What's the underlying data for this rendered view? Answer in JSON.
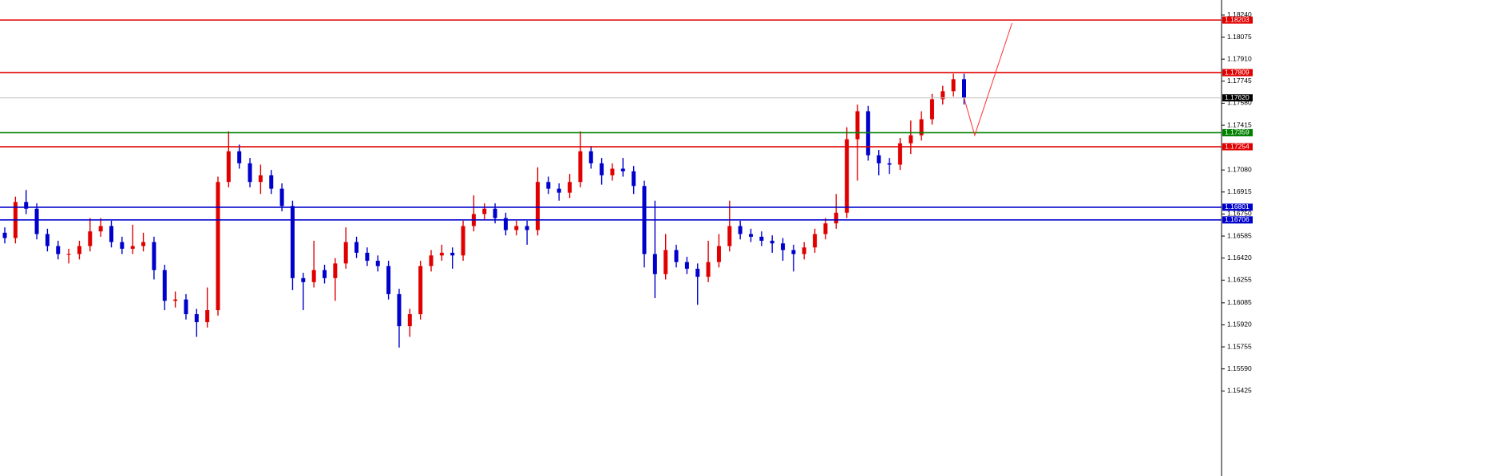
{
  "chart_data": {
    "type": "candlestick",
    "up_color": "#e00000",
    "down_color": "#0000cc",
    "open": [
      1.1661,
      1.1657,
      1.1684,
      1.1679,
      1.166,
      1.1651,
      1.1645,
      1.1645,
      1.1651,
      1.1662,
      1.1666,
      1.1654,
      1.1649,
      1.1651,
      1.1654,
      1.1633,
      1.161,
      1.1611,
      1.16,
      1.1594,
      1.1603,
      1.1699,
      1.1722,
      1.1713,
      1.1699,
      1.1704,
      1.1694,
      1.1681,
      1.1627,
      1.1624,
      1.1633,
      1.1627,
      1.1638,
      1.1654,
      1.1646,
      1.164,
      1.1636,
      1.1615,
      1.1591,
      1.16,
      1.1636,
      1.1644,
      1.1646,
      1.1644,
      1.1666,
      1.1675,
      1.1679,
      1.1672,
      1.1663,
      1.1666,
      1.1663,
      1.1699,
      1.1694,
      1.1691,
      1.1699,
      1.1722,
      1.1713,
      1.1704,
      1.1709,
      1.1707,
      1.1696,
      1.1645,
      1.163,
      1.1648,
      1.1639,
      1.1634,
      1.1628,
      1.1639,
      1.1651,
      1.1666,
      1.166,
      1.1658,
      1.1655,
      1.1653,
      1.1648,
      1.1645,
      1.165,
      1.166,
      1.1668,
      1.1676,
      1.1731,
      1.1752,
      1.1719,
      1.1713,
      1.1712,
      1.1728,
      1.1734,
      1.1746,
      1.1761,
      1.1767,
      1.1776
    ],
    "high": [
      1.1665,
      1.1688,
      1.1693,
      1.1683,
      1.1664,
      1.1655,
      1.1649,
      1.1655,
      1.1672,
      1.1672,
      1.167,
      1.1658,
      1.1667,
      1.1661,
      1.1658,
      1.1637,
      1.1617,
      1.1615,
      1.1604,
      1.162,
      1.1703,
      1.1737,
      1.1727,
      1.1717,
      1.1712,
      1.1708,
      1.1698,
      1.1685,
      1.1631,
      1.1655,
      1.1637,
      1.1642,
      1.1665,
      1.1658,
      1.165,
      1.1644,
      1.164,
      1.1619,
      1.1604,
      1.164,
      1.1648,
      1.1652,
      1.165,
      1.167,
      1.1689,
      1.1683,
      1.1683,
      1.1676,
      1.167,
      1.167,
      1.171,
      1.1703,
      1.1698,
      1.1705,
      1.1737,
      1.1726,
      1.1717,
      1.1713,
      1.1717,
      1.1711,
      1.17,
      1.1685,
      1.166,
      1.1652,
      1.1643,
      1.1638,
      1.1655,
      1.166,
      1.1685,
      1.167,
      1.1664,
      1.1662,
      1.1659,
      1.1657,
      1.1652,
      1.1654,
      1.1664,
      1.1672,
      1.169,
      1.174,
      1.1757,
      1.1756,
      1.1723,
      1.1717,
      1.1732,
      1.1745,
      1.1752,
      1.1765,
      1.1771,
      1.178,
      1.178
    ],
    "low": [
      1.1653,
      1.1653,
      1.1675,
      1.1656,
      1.1647,
      1.1641,
      1.1638,
      1.1641,
      1.1647,
      1.1658,
      1.165,
      1.1645,
      1.1645,
      1.1647,
      1.1626,
      1.1603,
      1.1605,
      1.1596,
      1.1583,
      1.159,
      1.1599,
      1.1695,
      1.1709,
      1.1695,
      1.169,
      1.169,
      1.1677,
      1.1618,
      1.1603,
      1.162,
      1.1623,
      1.161,
      1.1634,
      1.1642,
      1.1636,
      1.1632,
      1.1611,
      1.1575,
      1.1583,
      1.1596,
      1.1632,
      1.164,
      1.1634,
      1.164,
      1.1662,
      1.1671,
      1.1668,
      1.1659,
      1.1659,
      1.1652,
      1.1659,
      1.169,
      1.1685,
      1.1687,
      1.1695,
      1.1709,
      1.1697,
      1.17,
      1.1703,
      1.169,
      1.1635,
      1.1612,
      1.1626,
      1.1635,
      1.163,
      1.1607,
      1.1624,
      1.1635,
      1.1647,
      1.1656,
      1.1654,
      1.1651,
      1.1646,
      1.164,
      1.1632,
      1.1641,
      1.1646,
      1.1656,
      1.1664,
      1.1672,
      1.17,
      1.1715,
      1.1704,
      1.1705,
      1.1708,
      1.172,
      1.173,
      1.1742,
      1.1757,
      1.1763,
      1.1757
    ],
    "close": [
      1.1657,
      1.1684,
      1.1679,
      1.166,
      1.1651,
      1.1645,
      1.1645,
      1.1651,
      1.1662,
      1.1666,
      1.1654,
      1.1649,
      1.1651,
      1.1654,
      1.1633,
      1.161,
      1.1611,
      1.16,
      1.1594,
      1.1603,
      1.1699,
      1.1722,
      1.1713,
      1.1699,
      1.1704,
      1.1694,
      1.1681,
      1.1627,
      1.1624,
      1.1633,
      1.1627,
      1.1638,
      1.1654,
      1.1646,
      1.164,
      1.1636,
      1.1615,
      1.1591,
      1.16,
      1.1636,
      1.1644,
      1.1646,
      1.1644,
      1.1666,
      1.1675,
      1.1679,
      1.1672,
      1.1663,
      1.1666,
      1.1663,
      1.1699,
      1.1694,
      1.1691,
      1.1699,
      1.1722,
      1.1713,
      1.1704,
      1.1709,
      1.1707,
      1.1696,
      1.1645,
      1.163,
      1.1648,
      1.1639,
      1.1634,
      1.1628,
      1.1639,
      1.1651,
      1.1666,
      1.166,
      1.1658,
      1.1655,
      1.1653,
      1.1648,
      1.1645,
      1.165,
      1.166,
      1.1668,
      1.1676,
      1.1731,
      1.1752,
      1.1719,
      1.1713,
      1.1712,
      1.1728,
      1.1734,
      1.1746,
      1.1761,
      1.1767,
      1.1776,
      1.1762
    ],
    "ylim": [
      1.14788,
      1.18353
    ],
    "yticks": [
      {
        "value": 1.1824,
        "label": "1.18240"
      },
      1.18075,
      {
        "value": 1.1791,
        "label": "1.17910"
      },
      1.17745,
      {
        "value": 1.1758,
        "label": "1.17580"
      },
      1.17415,
      {
        "value": 1.1708,
        "label": "1.17080"
      },
      1.16915,
      {
        "value": 1.1675,
        "label": "1.16750"
      },
      1.16585,
      {
        "value": 1.1642,
        "label": "1.16420"
      },
      1.16255,
      1.16085,
      {
        "value": 1.1592,
        "label": "1.15920"
      },
      1.15755,
      {
        "value": 1.1559,
        "label": "1.15590"
      },
      1.15425
    ],
    "levels": [
      {
        "value": 1.18203,
        "label": "1.18203",
        "color": "#e00000"
      },
      {
        "value": 1.17809,
        "label": "1.17809",
        "color": "#e00000"
      },
      {
        "value": 1.1762,
        "label": "1.17620",
        "color": "#000000"
      },
      {
        "value": 1.17359,
        "label": "1.17359",
        "color": "#008000"
      },
      {
        "value": 1.17254,
        "label": "1.17254",
        "color": "#e00000"
      },
      {
        "value": 1.16801,
        "label": "1.16801",
        "color": "#0000cc"
      },
      {
        "value": 1.16706,
        "label": "1.16706",
        "color": "#0000cc"
      }
    ],
    "projection": {
      "x": [
        90,
        91,
        94.5
      ],
      "values": [
        1.1762,
        1.1734,
        1.1818
      ],
      "color": "#ff3030"
    }
  }
}
